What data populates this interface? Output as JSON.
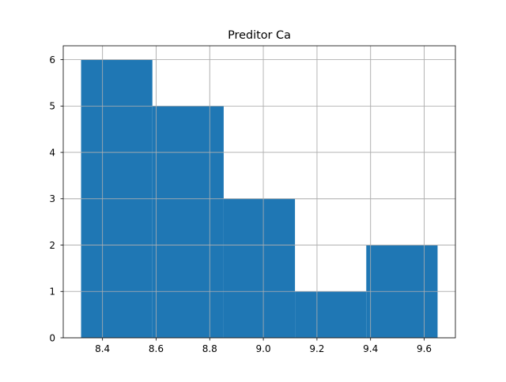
{
  "chart_data": {
    "type": "bar",
    "title": "Preditor Ca",
    "xlabel": "",
    "ylabel": "",
    "bins": [
      {
        "start": 8.32,
        "end": 8.586,
        "count": 6
      },
      {
        "start": 8.586,
        "end": 8.852,
        "count": 5
      },
      {
        "start": 8.852,
        "end": 9.118,
        "count": 3
      },
      {
        "start": 9.118,
        "end": 9.384,
        "count": 1
      },
      {
        "start": 9.384,
        "end": 9.65,
        "count": 2
      }
    ],
    "xlim": [
      8.2535,
      9.7165
    ],
    "ylim": [
      0,
      6.3
    ],
    "xticks": [
      {
        "value": 8.4,
        "label": "8.4"
      },
      {
        "value": 8.6,
        "label": "8.6"
      },
      {
        "value": 8.8,
        "label": "8.8"
      },
      {
        "value": 9.0,
        "label": "9.0"
      },
      {
        "value": 9.2,
        "label": "9.2"
      },
      {
        "value": 9.4,
        "label": "9.4"
      },
      {
        "value": 9.6,
        "label": "9.6"
      }
    ],
    "yticks": [
      {
        "value": 0,
        "label": "0"
      },
      {
        "value": 1,
        "label": "1"
      },
      {
        "value": 2,
        "label": "2"
      },
      {
        "value": 3,
        "label": "3"
      },
      {
        "value": 4,
        "label": "4"
      },
      {
        "value": 5,
        "label": "5"
      },
      {
        "value": 6,
        "label": "6"
      }
    ],
    "grid": true,
    "bar_color": "#1f77b4",
    "grid_color": "#b0b0b0"
  }
}
